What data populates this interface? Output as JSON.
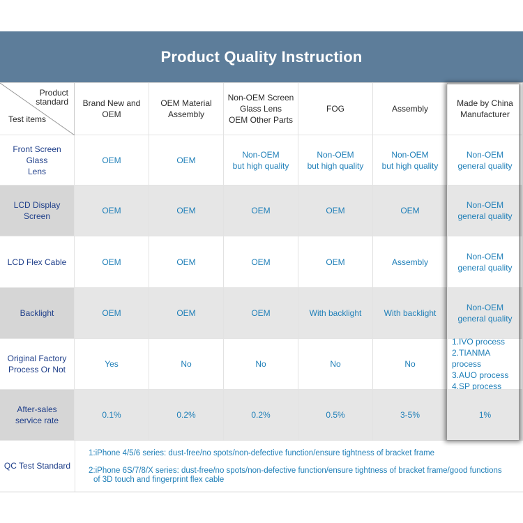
{
  "title": "Product Quality Instruction",
  "corner": {
    "product_standard": [
      "Product",
      "standard"
    ],
    "test_items": "Test items"
  },
  "columns": [
    [
      "Brand New and",
      "OEM"
    ],
    [
      "OEM Material",
      "Assembly"
    ],
    [
      "Non-OEM Screen",
      "Glass Lens",
      "OEM Other Parts"
    ],
    [
      "FOG"
    ],
    [
      "Assembly"
    ],
    [
      "Made by China",
      "Manufacturer"
    ]
  ],
  "rows": [
    {
      "label": [
        "Front Screen Glass",
        "Lens"
      ],
      "cells": [
        [
          "OEM"
        ],
        [
          "OEM"
        ],
        [
          "Non-OEM",
          "but high quality"
        ],
        [
          "Non-OEM",
          "but high quality"
        ],
        [
          "Non-OEM",
          "but high quality"
        ],
        [
          "Non-OEM",
          "general quality"
        ]
      ]
    },
    {
      "label": [
        "LCD Display",
        "Screen"
      ],
      "cells": [
        [
          "OEM"
        ],
        [
          "OEM"
        ],
        [
          "OEM"
        ],
        [
          "OEM"
        ],
        [
          "OEM"
        ],
        [
          "Non-OEM",
          "general quality"
        ]
      ]
    },
    {
      "label": [
        "LCD Flex Cable"
      ],
      "cells": [
        [
          "OEM"
        ],
        [
          "OEM"
        ],
        [
          "OEM"
        ],
        [
          "OEM"
        ],
        [
          "Assembly"
        ],
        [
          "Non-OEM",
          "general quality"
        ]
      ]
    },
    {
      "label": [
        "Backlight"
      ],
      "cells": [
        [
          "OEM"
        ],
        [
          "OEM"
        ],
        [
          "OEM"
        ],
        [
          "With backlight"
        ],
        [
          "With backlight"
        ],
        [
          "Non-OEM",
          "general quality"
        ]
      ]
    },
    {
      "label": [
        "Original Factory",
        "Process Or Not"
      ],
      "cells": [
        [
          "Yes"
        ],
        [
          "No"
        ],
        [
          "No"
        ],
        [
          "No"
        ],
        [
          "No"
        ],
        [
          "1.IVO process",
          "2.TIANMA process",
          "3.AUO process",
          "4.SP process"
        ]
      ]
    },
    {
      "label": [
        "After-sales",
        "service rate"
      ],
      "cells": [
        [
          "0.1%"
        ],
        [
          "0.2%"
        ],
        [
          "0.2%"
        ],
        [
          "0.5%"
        ],
        [
          "3-5%"
        ],
        [
          "1%"
        ]
      ]
    }
  ],
  "qc": {
    "label": "QC Test Standard",
    "lines": [
      "1:iPhone 4/5/6 series: dust-free/no spots/non-defective function/ensure tightness of bracket frame",
      "2:iPhone 6S/7/8/X series: dust-free/no spots/non-defective function/ensure tightness of bracket frame/good functions",
      "of 3D touch and fingerprint flex cable"
    ]
  }
}
